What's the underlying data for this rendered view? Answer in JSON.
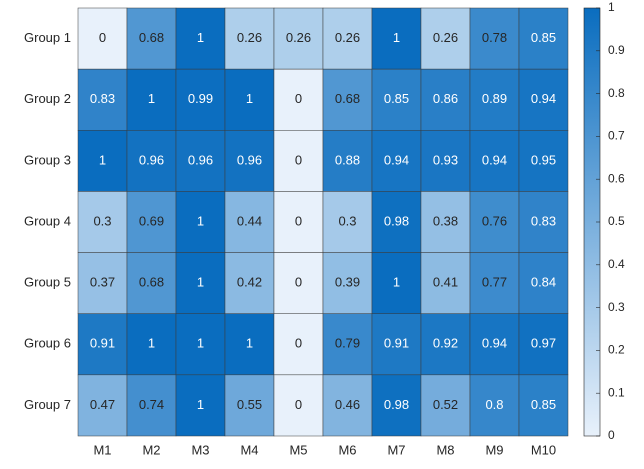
{
  "chart_data": {
    "type": "heatmap",
    "x": [
      "M1",
      "M2",
      "M3",
      "M4",
      "M5",
      "M6",
      "M7",
      "M8",
      "M9",
      "M10"
    ],
    "y": [
      "Group 1",
      "Group 2",
      "Group 3",
      "Group 4",
      "Group 5",
      "Group 6",
      "Group 7"
    ],
    "values": [
      [
        0,
        0.68,
        1,
        0.26,
        0.26,
        0.26,
        1,
        0.26,
        0.78,
        0.85
      ],
      [
        0.83,
        1,
        0.99,
        1,
        0,
        0.68,
        0.85,
        0.86,
        0.89,
        0.94
      ],
      [
        1,
        0.96,
        0.96,
        0.96,
        0,
        0.88,
        0.94,
        0.93,
        0.94,
        0.95
      ],
      [
        0.3,
        0.69,
        1,
        0.44,
        0,
        0.3,
        0.98,
        0.38,
        0.76,
        0.83
      ],
      [
        0.37,
        0.68,
        1,
        0.42,
        0,
        0.39,
        1,
        0.41,
        0.77,
        0.84
      ],
      [
        0.91,
        1,
        1,
        1,
        0,
        0.79,
        0.91,
        0.92,
        0.94,
        0.97
      ],
      [
        0.47,
        0.74,
        1,
        0.55,
        0,
        0.46,
        0.98,
        0.52,
        0.8,
        0.85
      ]
    ],
    "clim": [
      0,
      1
    ],
    "colorbar_ticks": [
      0,
      0.1,
      0.2,
      0.3,
      0.4,
      0.5,
      0.6,
      0.7,
      0.8,
      0.9,
      1
    ],
    "colormap": [
      "#e8f1fb",
      "#0a6dbf"
    ]
  }
}
